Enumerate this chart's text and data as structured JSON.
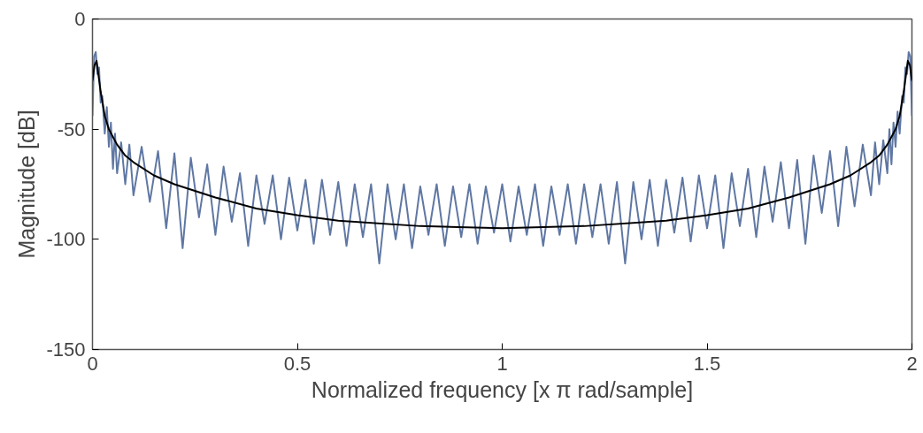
{
  "chart_data": {
    "type": "line",
    "xlabel": "Normalized frequency [x π rad/sample]",
    "ylabel": "Magnitude [dB]",
    "xlim": [
      0,
      2
    ],
    "ylim": [
      -150,
      0
    ],
    "xticks": [
      0,
      0.5,
      1,
      1.5,
      2
    ],
    "yticks": [
      -150,
      -100,
      -50,
      0
    ],
    "series": [
      {
        "color": "#5f77a3",
        "x": [
          0,
          0.004,
          0.008,
          0.012,
          0.016,
          0.02,
          0.024,
          0.03,
          0.035,
          0.04,
          0.045,
          0.05,
          0.055,
          0.06,
          0.07,
          0.08,
          0.09,
          0.1,
          0.12,
          0.14,
          0.16,
          0.18,
          0.2,
          0.22,
          0.24,
          0.26,
          0.28,
          0.3,
          0.32,
          0.34,
          0.36,
          0.38,
          0.4,
          0.42,
          0.44,
          0.46,
          0.48,
          0.5,
          0.52,
          0.54,
          0.56,
          0.58,
          0.6,
          0.62,
          0.64,
          0.66,
          0.68,
          0.7,
          0.72,
          0.74,
          0.76,
          0.78,
          0.8,
          0.82,
          0.84,
          0.86,
          0.88,
          0.9,
          0.92,
          0.94,
          0.96,
          0.98,
          1.0,
          1.02,
          1.04,
          1.06,
          1.08,
          1.1,
          1.12,
          1.14,
          1.16,
          1.18,
          1.2,
          1.22,
          1.24,
          1.26,
          1.28,
          1.3,
          1.32,
          1.34,
          1.36,
          1.38,
          1.4,
          1.42,
          1.44,
          1.46,
          1.48,
          1.5,
          1.52,
          1.54,
          1.56,
          1.58,
          1.6,
          1.62,
          1.64,
          1.66,
          1.68,
          1.7,
          1.72,
          1.74,
          1.76,
          1.78,
          1.8,
          1.82,
          1.84,
          1.86,
          1.88,
          1.9,
          1.91,
          1.92,
          1.93,
          1.94,
          1.945,
          1.95,
          1.955,
          1.96,
          1.965,
          1.97,
          1.976,
          1.98,
          1.984,
          1.988,
          1.992,
          1.996,
          2.0
        ],
        "values": [
          -44,
          -17,
          -15,
          -25,
          -22,
          -38,
          -35,
          -52,
          -40,
          -58,
          -47,
          -68,
          -52,
          -70,
          -56,
          -75,
          -57,
          -80,
          -58,
          -83,
          -60,
          -95,
          -61,
          -104,
          -63,
          -90,
          -66,
          -98,
          -67,
          -92,
          -70,
          -103,
          -71,
          -93,
          -71,
          -100,
          -72,
          -96,
          -73,
          -102,
          -73,
          -98,
          -74,
          -103,
          -75,
          -99,
          -75,
          -111,
          -75,
          -100,
          -75,
          -104,
          -76,
          -98,
          -75,
          -103,
          -76,
          -99,
          -75,
          -102,
          -76,
          -97,
          -75,
          -101,
          -76,
          -98,
          -75,
          -103,
          -76,
          -98,
          -75,
          -102,
          -75,
          -99,
          -75,
          -102,
          -74,
          -111,
          -74,
          -100,
          -73,
          -103,
          -73,
          -97,
          -72,
          -101,
          -71,
          -95,
          -71,
          -104,
          -70,
          -94,
          -68,
          -99,
          -67,
          -92,
          -65,
          -95,
          -64,
          -102,
          -62,
          -88,
          -60,
          -94,
          -58,
          -85,
          -57,
          -80,
          -56,
          -75,
          -55,
          -70,
          -50,
          -66,
          -47,
          -58,
          -42,
          -52,
          -35,
          -38,
          -22,
          -25,
          -15,
          -17,
          -44
        ]
      },
      {
        "color": "#000000",
        "x": [
          0,
          0.005,
          0.01,
          0.02,
          0.03,
          0.04,
          0.06,
          0.08,
          0.1,
          0.15,
          0.2,
          0.3,
          0.4,
          0.5,
          0.6,
          0.8,
          1.0,
          1.2,
          1.4,
          1.5,
          1.6,
          1.7,
          1.8,
          1.85,
          1.9,
          1.92,
          1.94,
          1.96,
          1.97,
          1.98,
          1.99,
          1.995,
          2.0
        ],
        "values": [
          -28,
          -21,
          -19,
          -33,
          -44,
          -50,
          -57,
          -62,
          -65,
          -71,
          -75,
          -81,
          -86,
          -89,
          -91.5,
          -94,
          -95,
          -94,
          -91.5,
          -89,
          -86,
          -81,
          -75,
          -71,
          -65,
          -62,
          -57,
          -50,
          -44,
          -33,
          -19,
          -21,
          -28
        ]
      }
    ]
  }
}
